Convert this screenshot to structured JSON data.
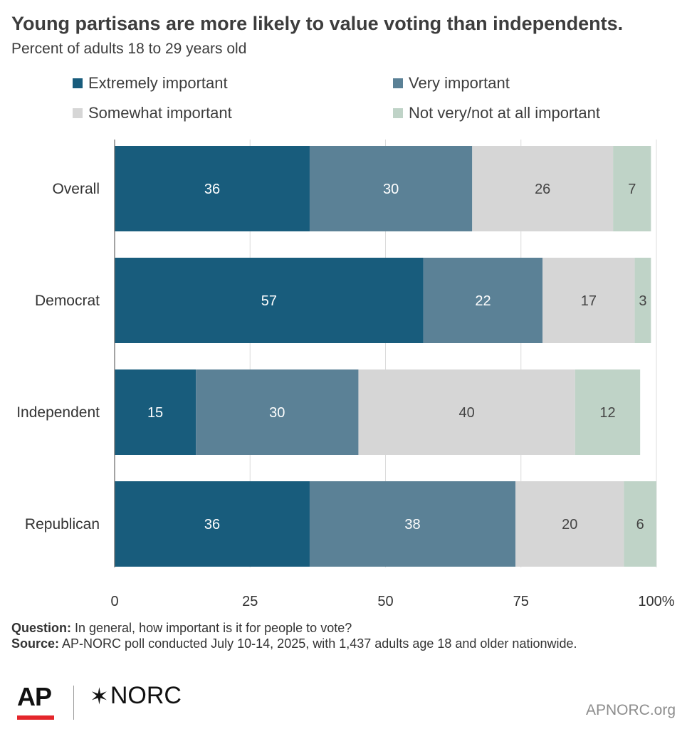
{
  "header": {
    "title": "Young partisans are more likely to value voting than independents.",
    "subtitle": "Percent of adults 18 to 29 years old"
  },
  "colors": {
    "extremely": "#185c7c",
    "very": "#5b8196",
    "somewhat": "#d6d6d6",
    "not_very": "#bfd3c7",
    "grid": "#dcdcdc",
    "axis": "#666666"
  },
  "chart_data": {
    "type": "bar",
    "orientation": "horizontal",
    "stacked": true,
    "categories": [
      "Overall",
      "Democrat",
      "Independent",
      "Republican"
    ],
    "series": [
      {
        "name": "Extremely important",
        "values": [
          36,
          57,
          15,
          36
        ]
      },
      {
        "name": "Very important",
        "values": [
          30,
          22,
          30,
          38
        ]
      },
      {
        "name": "Somewhat important",
        "values": [
          26,
          17,
          40,
          20
        ]
      },
      {
        "name": "Not very/not at all important",
        "values": [
          7,
          3,
          12,
          6
        ]
      }
    ],
    "x_ticks": [
      "0",
      "25",
      "50",
      "75",
      "100%"
    ],
    "xlim": [
      0,
      100
    ],
    "grid": true,
    "legend_position": "top"
  },
  "notes": {
    "question_label": "Question:",
    "question_text": " In general, how important is it for people to vote?",
    "source_label": "Source:",
    "source_text": " AP-NORC poll conducted July 10-14, 2025, with 1,437 adults age 18 and older nationwide."
  },
  "footer": {
    "logo_ap": "AP",
    "logo_norc_star": "✶",
    "logo_norc": "NORC",
    "site": "APNORC.org"
  }
}
